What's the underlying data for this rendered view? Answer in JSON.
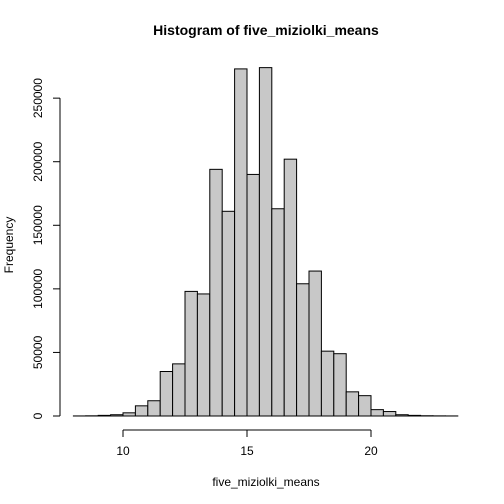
{
  "chart_data": {
    "type": "bar",
    "title": "Histogram of five_miziolki_means",
    "xlabel": "five_miziolki_means",
    "ylabel": "Frequency",
    "xlim": [
      7.9,
      23.5
    ],
    "ylim": [
      0,
      280000
    ],
    "x_ticks": [
      10,
      15,
      20
    ],
    "y_ticks": [
      0,
      50000,
      100000,
      150000,
      200000,
      250000
    ],
    "x_tick_labels": [
      "10",
      "15",
      "20"
    ],
    "y_tick_labels": [
      "0",
      "50000",
      "100000",
      "150000",
      "200000",
      "250000"
    ],
    "bin_width": 0.5,
    "bins_start": [
      8.0,
      8.5,
      9.0,
      9.5,
      10.0,
      10.5,
      11.0,
      11.5,
      12.0,
      12.5,
      13.0,
      13.5,
      14.0,
      14.5,
      15.0,
      15.5,
      16.0,
      16.5,
      17.0,
      17.5,
      18.0,
      18.5,
      19.0,
      19.5,
      20.0,
      20.5,
      21.0,
      21.5,
      22.0,
      22.5,
      23.0
    ],
    "values": [
      50,
      150,
      500,
      1000,
      2500,
      8000,
      12000,
      35000,
      41000,
      98000,
      96000,
      194000,
      161000,
      273000,
      190000,
      274000,
      163000,
      202000,
      104000,
      114000,
      51000,
      49000,
      19000,
      16000,
      5000,
      3500,
      1000,
      500,
      200,
      100,
      50
    ],
    "grid": false,
    "legend": "none"
  }
}
